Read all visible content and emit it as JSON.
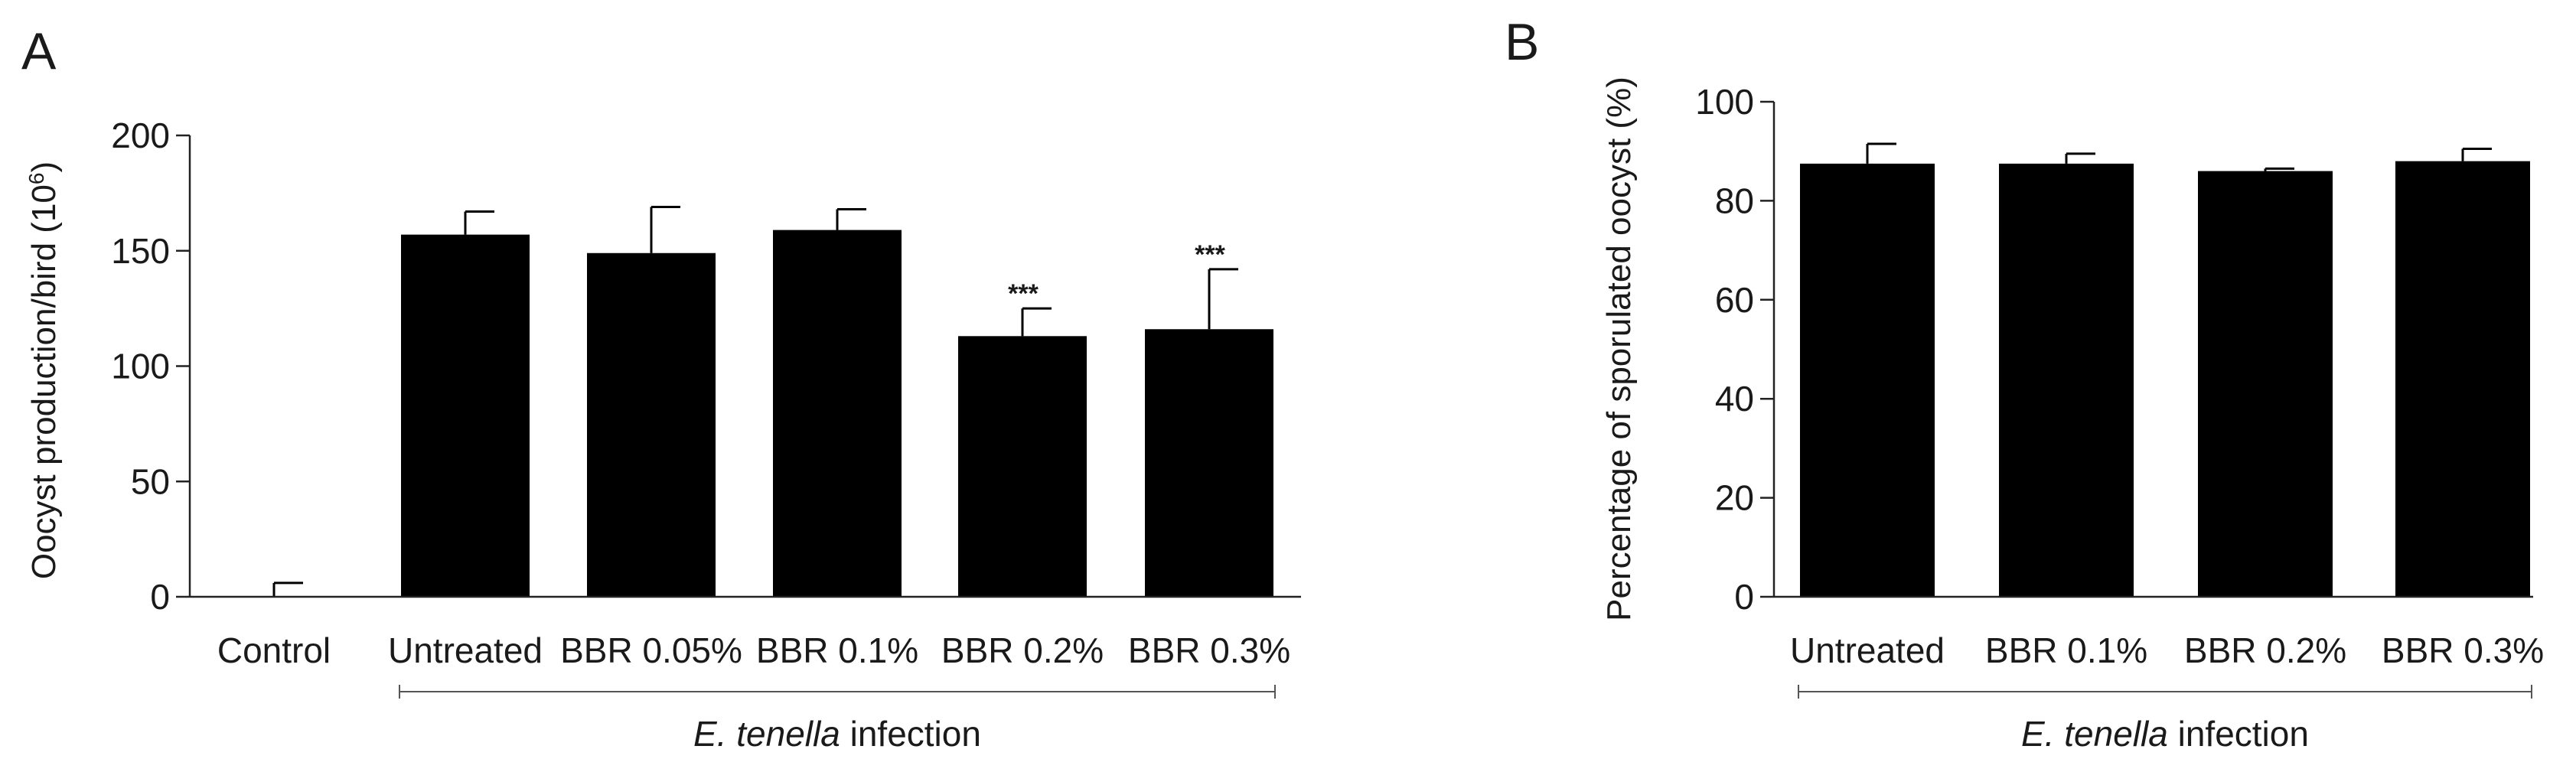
{
  "chart_data": [
    {
      "panel": "A",
      "type": "bar",
      "ylabel_main": "Oocyst production/bird (10",
      "ylabel_sup": "6",
      "ylabel_end": ")",
      "ylim": [
        0,
        200
      ],
      "yticks": [
        "0",
        "50",
        "100",
        "150",
        "200"
      ],
      "ytick_values": [
        0,
        50,
        100,
        150,
        200
      ],
      "categories": [
        "Control",
        "Untreated",
        "BBR 0.05%",
        "BBR 0.1%",
        "BBR 0.2%",
        "BBR 0.3%"
      ],
      "values": [
        0,
        157,
        149,
        159,
        113,
        116
      ],
      "errors": [
        6,
        10,
        20,
        9,
        12,
        26
      ],
      "annotations": [
        "",
        "",
        "",
        "",
        "***",
        "***"
      ],
      "group_label_italic": "E. tenella",
      "group_label_rest": " infection",
      "group_span": [
        1,
        5
      ]
    },
    {
      "panel": "B",
      "type": "bar",
      "ylabel": "Percentage of sporulated oocyst (%)",
      "ylim": [
        0,
        100
      ],
      "yticks": [
        "0",
        "20",
        "40",
        "60",
        "80",
        "100"
      ],
      "ytick_values": [
        0,
        20,
        40,
        60,
        80,
        100
      ],
      "categories": [
        "Untreated",
        "BBR 0.1%",
        "BBR 0.2%",
        "BBR 0.3%"
      ],
      "values": [
        87.5,
        87.5,
        86,
        88
      ],
      "errors": [
        4,
        2,
        0.5,
        2.5
      ],
      "annotations": [
        "",
        "",
        "",
        ""
      ],
      "group_label_italic": "E. tenella",
      "group_label_rest": " infection",
      "group_span": [
        0,
        3
      ]
    }
  ]
}
